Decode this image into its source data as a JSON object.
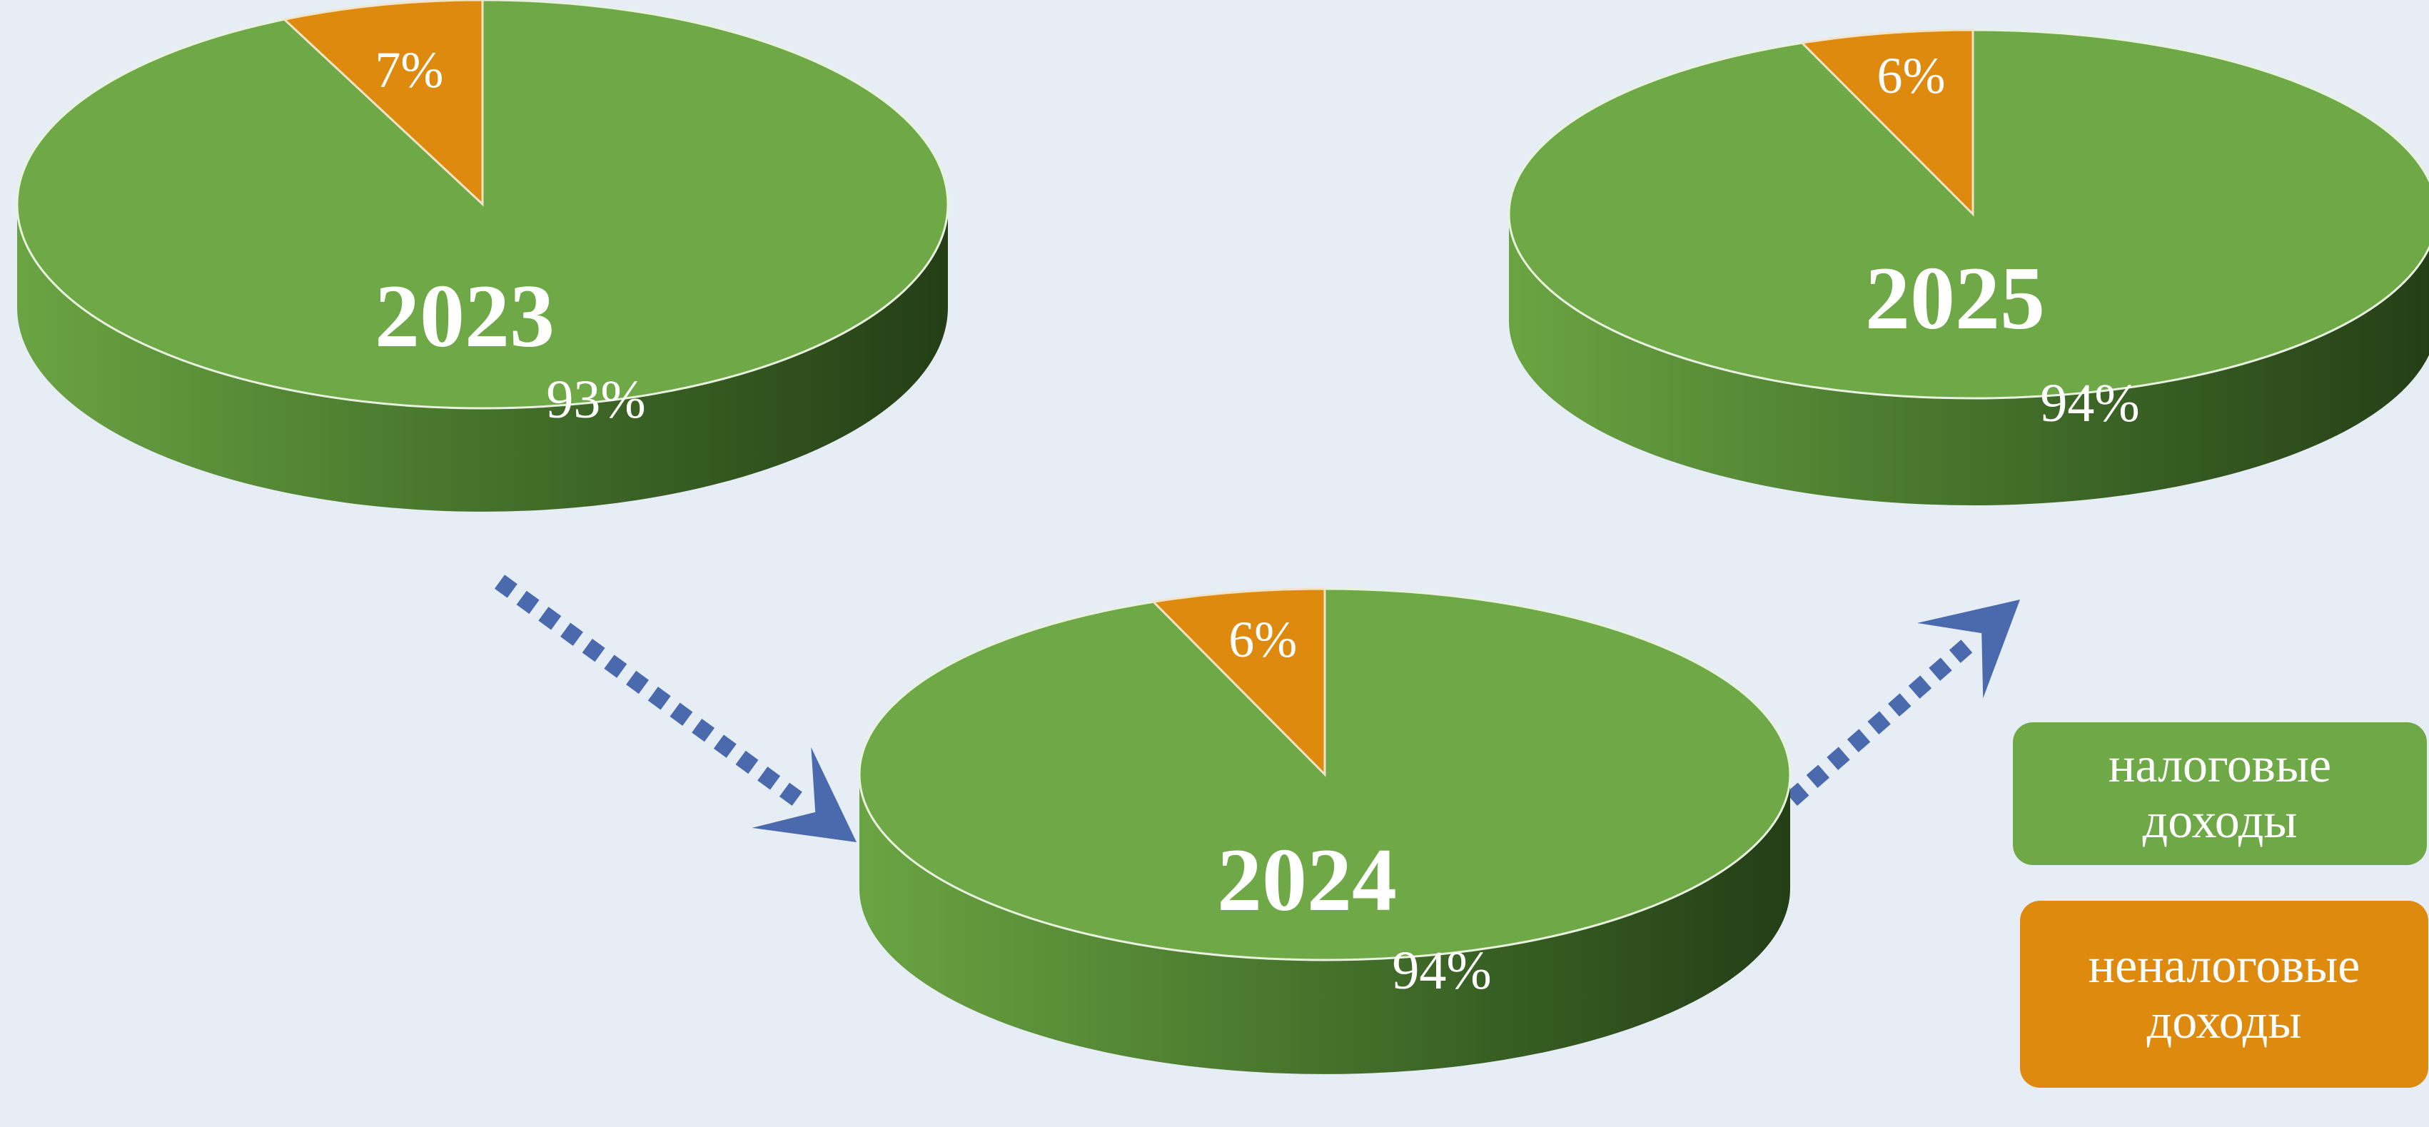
{
  "colors": {
    "background": "#e6edf5",
    "tax_revenue": "#6fa846",
    "tax_revenue_side_light": "#5f9840",
    "tax_revenue_side_dark": "#2c4a1b",
    "non_tax_revenue": "#dd8a0f",
    "arrow": "#4a6aad"
  },
  "legend": {
    "tax": {
      "line1": "налоговые",
      "line2": "доходы",
      "color": "#6fa846"
    },
    "non_tax": {
      "line1": "неналоговые",
      "line2": "доходы",
      "color": "#dd8a0f"
    }
  },
  "chart_data": {
    "type": "pie",
    "series_names": [
      "налоговые доходы",
      "неналоговые доходы"
    ],
    "pies": [
      {
        "year": "2023",
        "tax_pct": 93,
        "non_tax_pct": 7,
        "tax_label": "93%",
        "non_tax_label": "7%"
      },
      {
        "year": "2024",
        "tax_pct": 94,
        "non_tax_pct": 6,
        "tax_label": "94%",
        "non_tax_label": "6%"
      },
      {
        "year": "2025",
        "tax_pct": 94,
        "non_tax_pct": 6,
        "tax_label": "94%",
        "non_tax_label": "6%"
      }
    ]
  }
}
